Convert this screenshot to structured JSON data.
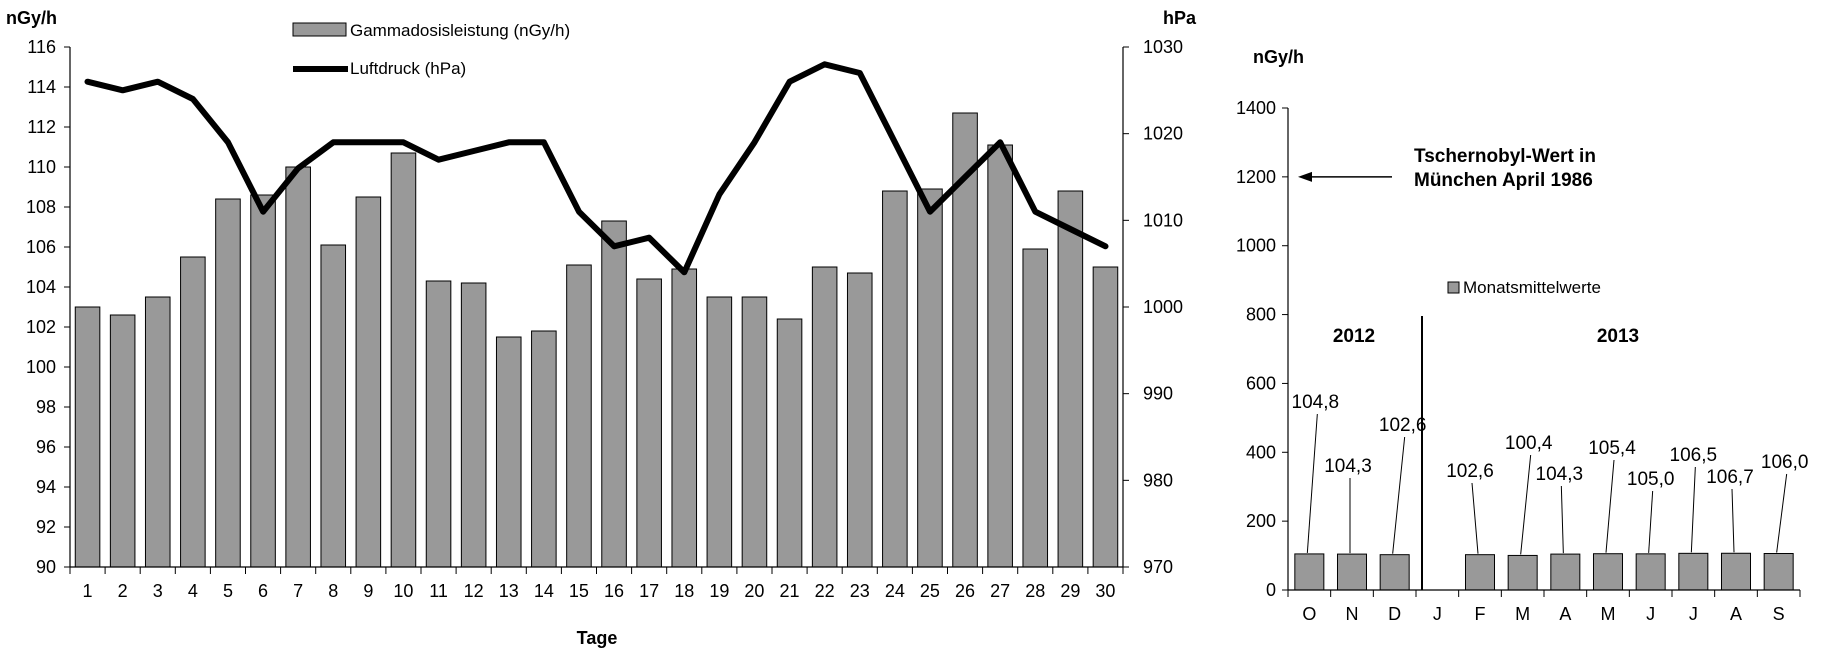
{
  "chart_data": [
    {
      "type": "bar+line",
      "xlabel": "Tage",
      "y_left_unit": "nGy/h",
      "y_right_unit": "hPa",
      "ylim_left": [
        90,
        116
      ],
      "ylim_right": [
        970,
        1030
      ],
      "y_left_ticks": [
        "90",
        "92",
        "94",
        "96",
        "98",
        "100",
        "102",
        "104",
        "106",
        "108",
        "110",
        "112",
        "114",
        "116"
      ],
      "y_right_ticks": [
        "970",
        "980",
        "990",
        "1000",
        "1010",
        "1020",
        "1030"
      ],
      "categories": [
        "1",
        "2",
        "3",
        "4",
        "5",
        "6",
        "7",
        "8",
        "9",
        "10",
        "11",
        "12",
        "13",
        "14",
        "15",
        "16",
        "17",
        "18",
        "19",
        "20",
        "21",
        "22",
        "23",
        "24",
        "25",
        "26",
        "27",
        "28",
        "29",
        "30"
      ],
      "legend_position": "top-center",
      "series": [
        {
          "name": "Gammadosisleistung (nGy/h)",
          "type": "bar",
          "axis": "left",
          "color": "#999999",
          "values": [
            103.0,
            102.6,
            103.5,
            105.5,
            108.4,
            108.6,
            110.0,
            106.1,
            108.5,
            110.7,
            104.3,
            104.2,
            101.5,
            101.8,
            105.1,
            107.3,
            104.4,
            104.9,
            103.5,
            103.5,
            102.4,
            105.0,
            104.7,
            108.8,
            108.9,
            112.7,
            111.1,
            105.9,
            108.8,
            105.0
          ]
        },
        {
          "name": "Luftdruck (hPa)",
          "type": "line",
          "axis": "right",
          "color": "#000000",
          "values": [
            1026,
            1025,
            1026,
            1024,
            1019,
            1011,
            1016,
            1019,
            1019,
            1019,
            1017,
            1018,
            1019,
            1019,
            1011,
            1007,
            1008,
            1004,
            1013,
            1019,
            1026,
            1028,
            1027,
            1019,
            1011,
            1015,
            1019,
            1011,
            1009,
            1007
          ]
        }
      ]
    },
    {
      "type": "bar",
      "y_unit": "nGy/h",
      "ylim": [
        0,
        1400
      ],
      "y_ticks": [
        "0",
        "200",
        "400",
        "600",
        "800",
        "1000",
        "1200",
        "1400"
      ],
      "categories": [
        "O",
        "N",
        "D",
        "J",
        "F",
        "M",
        "A",
        "M",
        "J",
        "J",
        "A",
        "S"
      ],
      "legend_position": "top-right",
      "year_labels": [
        "2012",
        "2013"
      ],
      "annotation": "Tschernobyl-Wert in München April 1986",
      "annotation_value": 1200,
      "series": [
        {
          "name": "Monatsmittelwerte",
          "color": "#999999",
          "values": [
            104.8,
            104.3,
            102.6,
            null,
            102.6,
            100.4,
            104.3,
            105.4,
            105.0,
            106.5,
            106.7,
            106.0
          ],
          "labels": [
            "104,8",
            "104,3",
            "102,6",
            "",
            "102,6",
            "100,4",
            "104,3",
            "105,4",
            "105,0",
            "106,5",
            "106,7",
            "106,0"
          ]
        }
      ]
    }
  ]
}
